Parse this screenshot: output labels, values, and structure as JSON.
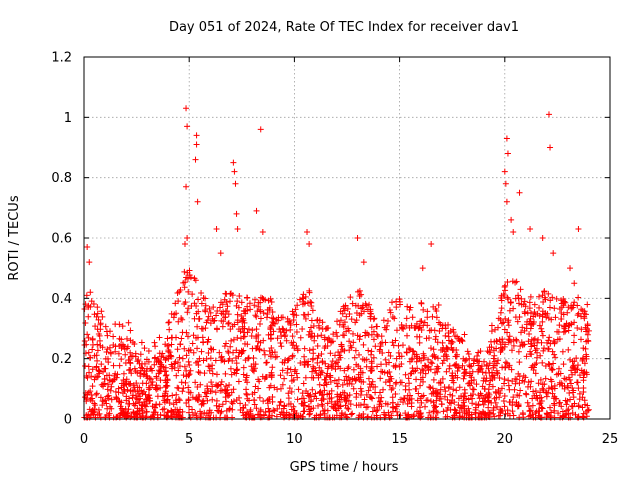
{
  "chart_data": {
    "type": "scatter",
    "title": "Day 051 of 2024, Rate Of TEC Index for receiver dav1",
    "xlabel": "GPS time / hours",
    "ylabel": "ROTI / TECUs",
    "xlim": [
      0,
      25
    ],
    "ylim": [
      0,
      1.2
    ],
    "xticks": [
      0,
      5,
      10,
      15,
      20,
      25
    ],
    "xtick_labels": [
      "0",
      "5",
      "10",
      "15",
      "20",
      "25"
    ],
    "yticks": [
      0,
      0.2,
      0.4,
      0.6,
      0.8,
      1,
      1.2
    ],
    "ytick_labels": [
      "0",
      "0.2",
      "0.4",
      "0.6",
      "0.8",
      "1",
      "1.2"
    ],
    "grid": true,
    "legend": "none",
    "marker": "plus",
    "color": "#ff0000",
    "series": [
      {
        "values_note": "dense 30-s ROTI samples 0-24 h; baseline 0-0.3 TECU with outliers",
        "outliers": [
          [
            0.15,
            0.57
          ],
          [
            0.25,
            0.52
          ],
          [
            0.3,
            0.42
          ],
          [
            4.85,
            1.03
          ],
          [
            4.9,
            0.97
          ],
          [
            4.85,
            0.77
          ],
          [
            4.8,
            0.58
          ],
          [
            4.9,
            0.6
          ],
          [
            5.35,
            0.94
          ],
          [
            5.35,
            0.91
          ],
          [
            5.3,
            0.86
          ],
          [
            5.4,
            0.72
          ],
          [
            7.1,
            0.85
          ],
          [
            7.15,
            0.82
          ],
          [
            7.2,
            0.78
          ],
          [
            7.25,
            0.68
          ],
          [
            7.3,
            0.63
          ],
          [
            8.4,
            0.96
          ],
          [
            8.2,
            0.69
          ],
          [
            8.5,
            0.62
          ],
          [
            6.3,
            0.63
          ],
          [
            6.5,
            0.55
          ],
          [
            10.6,
            0.62
          ],
          [
            10.7,
            0.58
          ],
          [
            13.0,
            0.6
          ],
          [
            13.3,
            0.52
          ],
          [
            16.5,
            0.58
          ],
          [
            16.1,
            0.5
          ],
          [
            20.1,
            0.93
          ],
          [
            20.15,
            0.88
          ],
          [
            20.0,
            0.82
          ],
          [
            20.05,
            0.78
          ],
          [
            20.1,
            0.72
          ],
          [
            20.7,
            0.75
          ],
          [
            20.3,
            0.66
          ],
          [
            20.4,
            0.62
          ],
          [
            21.2,
            0.63
          ],
          [
            21.8,
            0.6
          ],
          [
            22.1,
            1.01
          ],
          [
            22.15,
            0.9
          ],
          [
            22.3,
            0.55
          ],
          [
            23.1,
            0.5
          ],
          [
            23.5,
            0.63
          ],
          [
            23.3,
            0.45
          ]
        ]
      }
    ]
  }
}
